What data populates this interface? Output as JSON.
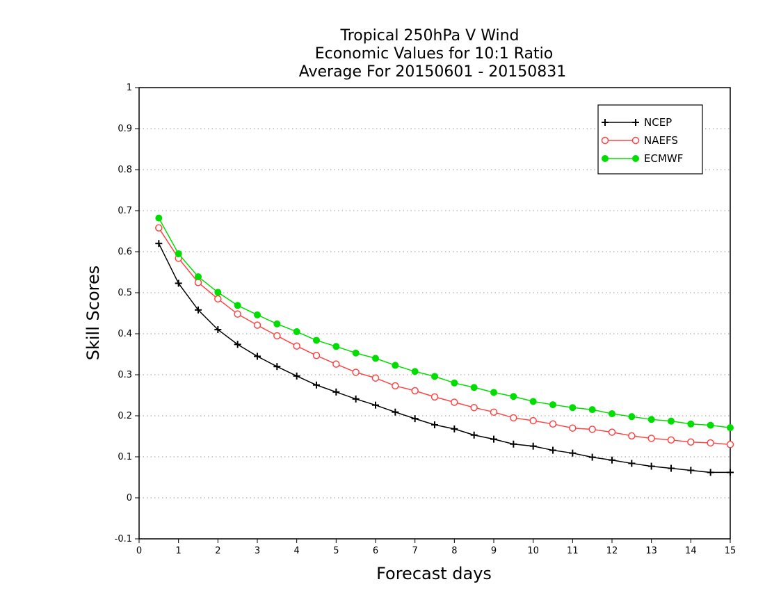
{
  "chart_data": {
    "type": "line",
    "title": [
      "Tropical 250hPa V Wind",
      "Economic Values for 10:1 Ratio",
      "Average For 20150601 - 20150831"
    ],
    "xlabel": "Forecast days",
    "ylabel": "Skill Scores",
    "xlim": [
      0,
      15
    ],
    "ylim": [
      -0.1,
      1
    ],
    "x_ticks": [
      "0",
      "1",
      "2",
      "3",
      "4",
      "5",
      "6",
      "7",
      "8",
      "9",
      "10",
      "11",
      "12",
      "13",
      "14",
      "15"
    ],
    "y_ticks": [
      "-0.1",
      "0",
      "0.1",
      "0.2",
      "0.3",
      "0.4",
      "0.5",
      "0.6",
      "0.7",
      "0.8",
      "0.9",
      "1"
    ],
    "grid": "horizontal-dotted",
    "legend_position": "top-right",
    "x": [
      0.5,
      1,
      1.5,
      2,
      2.5,
      3,
      3.5,
      4,
      4.5,
      5,
      5.5,
      6,
      6.5,
      7,
      7.5,
      8,
      8.5,
      9,
      9.5,
      10,
      10.5,
      11,
      11.5,
      12,
      12.5,
      13,
      13.5,
      14,
      14.5,
      15
    ],
    "series": [
      {
        "name": "NCEP",
        "color": "#000000",
        "marker": "plus",
        "values": [
          0.62,
          0.523,
          0.458,
          0.41,
          0.374,
          0.345,
          0.32,
          0.297,
          0.275,
          0.258,
          0.241,
          0.226,
          0.209,
          0.193,
          0.178,
          0.168,
          0.153,
          0.143,
          0.131,
          0.126,
          0.116,
          0.109,
          0.099,
          0.092,
          0.084,
          0.077,
          0.072,
          0.067,
          0.062,
          0.062
        ]
      },
      {
        "name": "NAEFS",
        "color": "#ff4444",
        "marker": "open-circle",
        "values": [
          0.658,
          0.584,
          0.525,
          0.485,
          0.448,
          0.421,
          0.395,
          0.37,
          0.347,
          0.326,
          0.306,
          0.292,
          0.273,
          0.261,
          0.246,
          0.233,
          0.22,
          0.209,
          0.195,
          0.188,
          0.18,
          0.17,
          0.167,
          0.16,
          0.151,
          0.145,
          0.141,
          0.136,
          0.134,
          0.13
        ]
      },
      {
        "name": "ECMWF",
        "color": "#00dd00",
        "marker": "filled-circle",
        "values": [
          0.682,
          0.595,
          0.539,
          0.501,
          0.469,
          0.446,
          0.424,
          0.405,
          0.384,
          0.369,
          0.353,
          0.34,
          0.323,
          0.308,
          0.296,
          0.28,
          0.269,
          0.257,
          0.247,
          0.235,
          0.227,
          0.22,
          0.215,
          0.205,
          0.198,
          0.191,
          0.187,
          0.18,
          0.177,
          0.171
        ]
      }
    ]
  }
}
